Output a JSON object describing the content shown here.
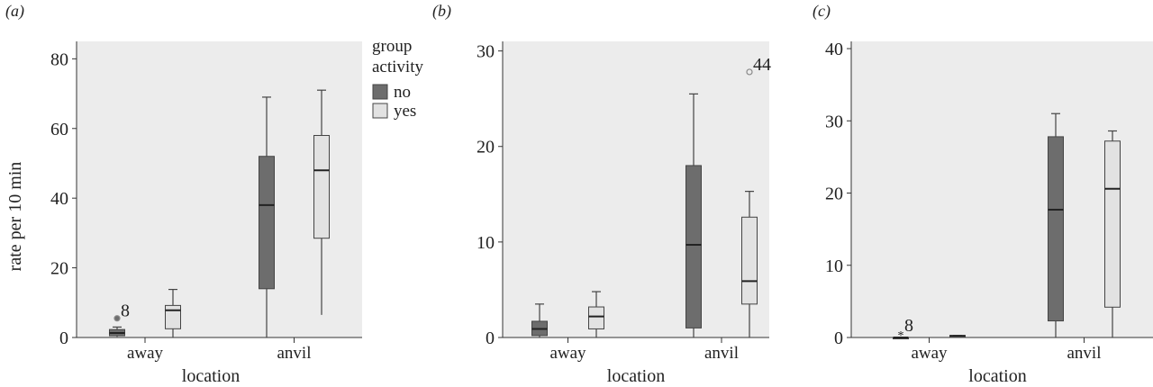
{
  "figure": {
    "legend": {
      "title_line1": "group",
      "title_line2": "activity",
      "items": [
        "no",
        "yes"
      ]
    },
    "colors": {
      "no": "#6d6d6d",
      "yes": "#e2e2e2",
      "plot_bg": "#ececec",
      "stroke": "#444444",
      "outlier": "#8a8a8a"
    }
  },
  "chart_data": [
    {
      "panel_label": "(a)",
      "type": "box",
      "xlabel": "location",
      "ylabel": "rate per 10 min",
      "categories": [
        "away",
        "anvil"
      ],
      "ylim": [
        0,
        85
      ],
      "yticks": [
        0,
        20,
        40,
        60,
        80
      ],
      "legend": "top-right",
      "series": [
        {
          "name": "no",
          "boxes": [
            {
              "min": 0.2,
              "q1": 0.5,
              "median": 1.3,
              "q3": 2.3,
              "max": 3.0,
              "outliers": [
                {
                  "value": 5.5,
                  "marker": "circle",
                  "label": "8"
                }
              ]
            },
            {
              "min": 0,
              "q1": 14,
              "median": 38,
              "q3": 52,
              "max": 69,
              "outliers": []
            }
          ]
        },
        {
          "name": "yes",
          "boxes": [
            {
              "min": 0,
              "q1": 2.5,
              "median": 7.8,
              "q3": 9.2,
              "max": 13.8,
              "outliers": []
            },
            {
              "min": 6.5,
              "q1": 28.5,
              "median": 48,
              "q3": 58,
              "max": 71,
              "outliers": []
            }
          ]
        }
      ]
    },
    {
      "panel_label": "(b)",
      "type": "box",
      "xlabel": "location",
      "ylabel": "",
      "categories": [
        "away",
        "anvil"
      ],
      "ylim": [
        0,
        31
      ],
      "yticks": [
        0,
        10,
        20,
        30
      ],
      "series": [
        {
          "name": "no",
          "boxes": [
            {
              "min": 0,
              "q1": 0.2,
              "median": 0.9,
              "q3": 1.7,
              "max": 3.5,
              "outliers": []
            },
            {
              "min": 0,
              "q1": 1.0,
              "median": 9.7,
              "q3": 18,
              "max": 25.5,
              "outliers": []
            }
          ]
        },
        {
          "name": "yes",
          "boxes": [
            {
              "min": 0,
              "q1": 0.9,
              "median": 2.2,
              "q3": 3.2,
              "max": 4.8,
              "outliers": []
            },
            {
              "min": 0,
              "q1": 3.5,
              "median": 5.9,
              "q3": 12.6,
              "max": 15.3,
              "outliers": [
                {
                  "value": 27.8,
                  "marker": "circle",
                  "label": "44"
                }
              ]
            }
          ]
        }
      ]
    },
    {
      "panel_label": "(c)",
      "type": "box",
      "xlabel": "location",
      "ylabel": "",
      "categories": [
        "away",
        "anvil"
      ],
      "ylim": [
        0,
        41
      ],
      "yticks": [
        0,
        10,
        20,
        30,
        40
      ],
      "series": [
        {
          "name": "no",
          "boxes": [
            {
              "min": 0,
              "q1": 0,
              "median": 0,
              "q3": 0,
              "max": 0,
              "outliers": [
                {
                  "value": 0.6,
                  "marker": "star",
                  "label": "8"
                }
              ]
            },
            {
              "min": 0,
              "q1": 2.3,
              "median": 17.7,
              "q3": 27.8,
              "max": 31,
              "outliers": []
            }
          ]
        },
        {
          "name": "yes",
          "boxes": [
            {
              "min": 0,
              "q1": 0,
              "median": 0.2,
              "q3": 0.3,
              "max": 0.3,
              "outliers": []
            },
            {
              "min": 0,
              "q1": 4.2,
              "median": 20.6,
              "q3": 27.2,
              "max": 28.6,
              "outliers": []
            }
          ]
        }
      ]
    }
  ]
}
